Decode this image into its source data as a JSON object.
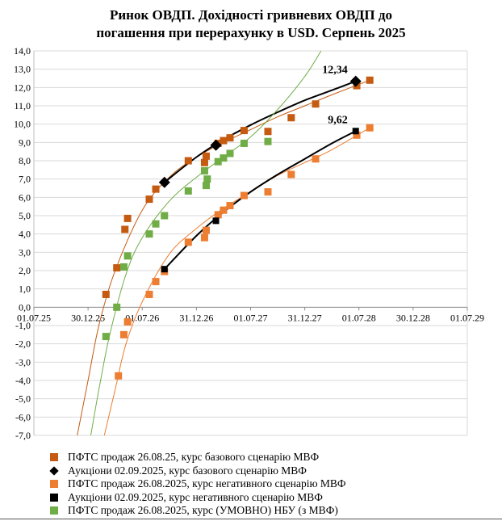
{
  "chart_data": {
    "type": "scatter",
    "title_line1": "Ринок ОВДП. Дохідності  гривневих ОВДП до",
    "title_line2": "погашення при перерахунку в USD. Серпень 2025",
    "ylim": [
      -7.0,
      14.0
    ],
    "y_ticks": [
      "14,0",
      "13,0",
      "12,0",
      "11,0",
      "10,0",
      "9,0",
      "8,0",
      "7,0",
      "6,0",
      "5,0",
      "4,0",
      "3,0",
      "2,0",
      "1,0",
      "0,0",
      "-1,0",
      "-2,0",
      "-3,0",
      "-4,0",
      "-5,0",
      "-6,0",
      "-7,0"
    ],
    "x_ticks": [
      "01.07.25",
      "30.12.25",
      "01.07.26",
      "31.12.26",
      "01.07.27",
      "31.12.27",
      "01.07.28",
      "30.12.28",
      "01.07.29"
    ],
    "grid": "horizontal",
    "legend_position": "bottom",
    "colors": {
      "pfts_base": "#C55A11",
      "auction_base": "#000000",
      "pfts_negative": "#ED7D31",
      "auction_negative": "#000000",
      "pfts_nbu": "#70AD47"
    },
    "annotations": [
      {
        "text": "12,34",
        "x": 5.94,
        "y": 12.34
      },
      {
        "text": "9,62",
        "x": 5.94,
        "y": 9.62
      }
    ],
    "series": [
      {
        "name": "ПФТС продаж 26.08.25, курс базового сценарію МВФ",
        "key": "pfts_base",
        "marker": "square",
        "points": [
          [
            1.33,
            0.7
          ],
          [
            1.53,
            2.15
          ],
          [
            1.68,
            4.25
          ],
          [
            1.73,
            4.85
          ],
          [
            2.13,
            5.9
          ],
          [
            2.25,
            6.45
          ],
          [
            2.85,
            8.0
          ],
          [
            3.15,
            7.9
          ],
          [
            3.18,
            8.25
          ],
          [
            3.4,
            8.95
          ],
          [
            3.5,
            9.1
          ],
          [
            3.62,
            9.25
          ],
          [
            3.88,
            9.65
          ],
          [
            4.32,
            9.6
          ],
          [
            4.75,
            10.35
          ],
          [
            5.2,
            11.1
          ],
          [
            5.96,
            12.1
          ],
          [
            6.2,
            12.4
          ]
        ],
        "fit": [
          [
            0.8,
            -7.0
          ],
          [
            1.0,
            -4.0
          ],
          [
            1.2,
            -1.0
          ],
          [
            1.5,
            2.0
          ],
          [
            2.0,
            5.3
          ],
          [
            2.5,
            7.1
          ],
          [
            3.0,
            8.2
          ],
          [
            3.5,
            9.0
          ],
          [
            4.0,
            9.7
          ],
          [
            4.5,
            10.4
          ],
          [
            5.0,
            11.0
          ],
          [
            5.5,
            11.6
          ],
          [
            6.2,
            12.4
          ]
        ]
      },
      {
        "name": "Аукціони 02.09.2025,  курс базового сценарію МВФ",
        "key": "auction_base",
        "marker": "diamond",
        "points": [
          [
            2.41,
            6.82
          ],
          [
            3.36,
            8.85
          ],
          [
            5.94,
            12.34
          ]
        ],
        "fit": [
          [
            2.41,
            6.82
          ],
          [
            3.0,
            8.2
          ],
          [
            3.5,
            9.15
          ],
          [
            4.0,
            9.95
          ],
          [
            4.5,
            10.65
          ],
          [
            5.0,
            11.3
          ],
          [
            5.5,
            11.85
          ],
          [
            5.94,
            12.34
          ]
        ]
      },
      {
        "name": "ПФТС продаж 26.08.2025,  курс негативного сценарію МВФ",
        "key": "pfts_negative",
        "marker": "square",
        "points": [
          [
            1.56,
            -3.75
          ],
          [
            1.66,
            -1.5
          ],
          [
            1.73,
            -0.8
          ],
          [
            2.13,
            0.7
          ],
          [
            2.25,
            1.4
          ],
          [
            2.41,
            1.95
          ],
          [
            2.85,
            3.55
          ],
          [
            3.15,
            3.8
          ],
          [
            3.18,
            4.2
          ],
          [
            3.4,
            5.05
          ],
          [
            3.5,
            5.3
          ],
          [
            3.62,
            5.55
          ],
          [
            3.88,
            6.1
          ],
          [
            4.32,
            6.3
          ],
          [
            4.75,
            7.25
          ],
          [
            5.2,
            8.1
          ],
          [
            5.96,
            9.4
          ],
          [
            6.2,
            9.8
          ]
        ],
        "fit": [
          [
            1.3,
            -7.0
          ],
          [
            1.5,
            -4.5
          ],
          [
            1.7,
            -2.0
          ],
          [
            2.0,
            0.3
          ],
          [
            2.5,
            2.9
          ],
          [
            3.0,
            4.3
          ],
          [
            3.5,
            5.4
          ],
          [
            4.0,
            6.3
          ],
          [
            4.5,
            7.2
          ],
          [
            5.0,
            7.9
          ],
          [
            5.5,
            8.6
          ],
          [
            6.2,
            9.8
          ]
        ]
      },
      {
        "name": "Аукціони 02.09.2025,  курс негативного сценарію МВФ",
        "key": "auction_negative",
        "marker": "square",
        "points": [
          [
            2.41,
            2.08
          ],
          [
            3.36,
            4.72
          ],
          [
            5.94,
            9.62
          ]
        ],
        "fit": [
          [
            2.41,
            2.08
          ],
          [
            3.0,
            3.9
          ],
          [
            3.5,
            5.2
          ],
          [
            4.0,
            6.3
          ],
          [
            4.5,
            7.25
          ],
          [
            5.0,
            8.1
          ],
          [
            5.5,
            8.95
          ],
          [
            5.94,
            9.62
          ]
        ]
      },
      {
        "name": "ПФТС продаж 26.08.2025,  курс (УМОВНО) НБУ  (з МВФ)",
        "key": "pfts_nbu",
        "marker": "square",
        "points": [
          [
            1.33,
            -1.6
          ],
          [
            1.53,
            0.0
          ],
          [
            1.66,
            2.2
          ],
          [
            1.73,
            2.8
          ],
          [
            2.13,
            4.0
          ],
          [
            2.25,
            4.55
          ],
          [
            2.41,
            5.0
          ],
          [
            2.85,
            6.35
          ],
          [
            3.15,
            7.45
          ],
          [
            3.18,
            6.65
          ],
          [
            3.2,
            7.0
          ],
          [
            3.4,
            7.95
          ],
          [
            3.5,
            8.15
          ],
          [
            3.62,
            8.4
          ],
          [
            3.88,
            8.95
          ],
          [
            4.32,
            9.05
          ]
        ],
        "fit": [
          [
            1.05,
            -7.0
          ],
          [
            1.2,
            -4.5
          ],
          [
            1.4,
            -1.5
          ],
          [
            1.7,
            1.8
          ],
          [
            2.0,
            3.8
          ],
          [
            2.5,
            5.8
          ],
          [
            3.0,
            7.1
          ],
          [
            3.5,
            8.2
          ],
          [
            4.0,
            9.3
          ],
          [
            4.5,
            10.8
          ],
          [
            5.0,
            12.6
          ],
          [
            5.3,
            14.0
          ]
        ]
      }
    ]
  }
}
